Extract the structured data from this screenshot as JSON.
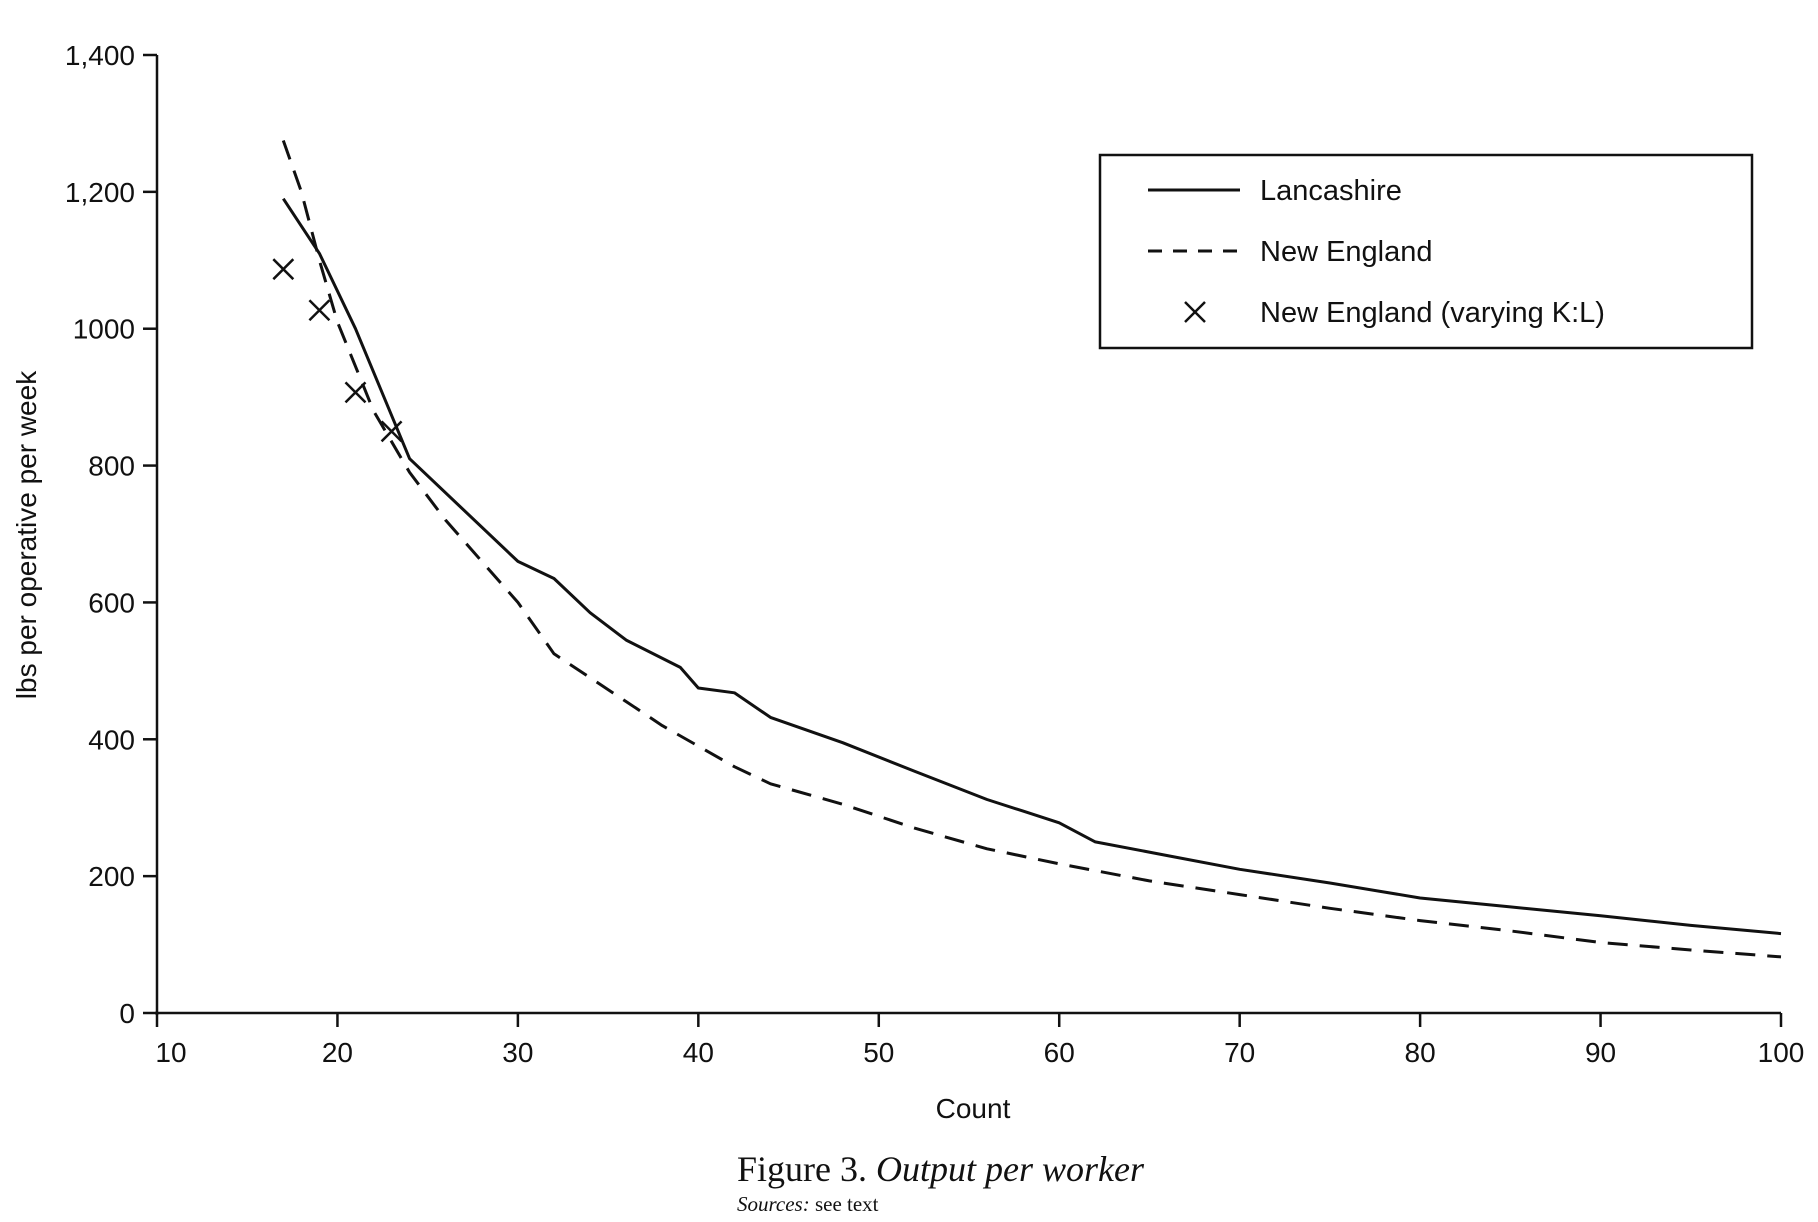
{
  "chart_data": {
    "type": "line",
    "xlabel": "Count",
    "ylabel": "lbs per operative per week",
    "xlim": [
      10,
      100
    ],
    "ylim": [
      0,
      1400
    ],
    "xticks": [
      10,
      20,
      30,
      40,
      50,
      60,
      70,
      80,
      90,
      100
    ],
    "xtick_labels": [
      "10",
      "20",
      "30",
      "40",
      "50",
      "60",
      "70",
      "80",
      "90",
      "100"
    ],
    "yticks": [
      0,
      200,
      400,
      600,
      800,
      1000,
      1200,
      1400
    ],
    "ytick_labels": [
      "0",
      "200",
      "400",
      "600",
      "800",
      "1000",
      "1,200",
      "1,400"
    ],
    "grid": false,
    "legend_position": "top-right",
    "series": [
      {
        "name": "Lancashire",
        "style": "solid",
        "x": [
          17,
          19,
          21,
          24,
          30,
          32,
          34,
          36,
          39,
          40,
          42,
          44,
          48,
          52,
          56,
          58,
          60,
          62,
          66,
          70,
          75,
          80,
          85,
          90,
          95,
          100
        ],
        "y": [
          1190,
          1110,
          1000,
          810,
          660,
          635,
          585,
          545,
          505,
          475,
          468,
          432,
          395,
          353,
          312,
          295,
          278,
          250,
          230,
          210,
          190,
          168,
          155,
          142,
          128,
          116
        ]
      },
      {
        "name": "New England",
        "style": "dashed",
        "x": [
          17,
          18,
          19,
          20,
          22,
          24,
          26,
          28,
          30,
          32,
          34,
          36,
          38,
          40,
          42,
          44,
          48,
          52,
          56,
          60,
          65,
          70,
          75,
          80,
          85,
          90,
          95,
          100
        ],
        "y": [
          1275,
          1200,
          1100,
          1010,
          880,
          790,
          720,
          660,
          600,
          525,
          490,
          455,
          420,
          390,
          360,
          335,
          305,
          270,
          240,
          218,
          193,
          173,
          153,
          135,
          120,
          103,
          92,
          82
        ]
      },
      {
        "name": "New England (varying K:L)",
        "style": "markers",
        "marker": "x",
        "x": [
          17,
          19,
          21,
          23
        ],
        "y": [
          1087,
          1027,
          907,
          850
        ]
      }
    ]
  },
  "caption": {
    "figure_label": "Figure 3.",
    "figure_title": "Output per worker",
    "sources_label": "Sources:",
    "sources_text": "see text"
  }
}
